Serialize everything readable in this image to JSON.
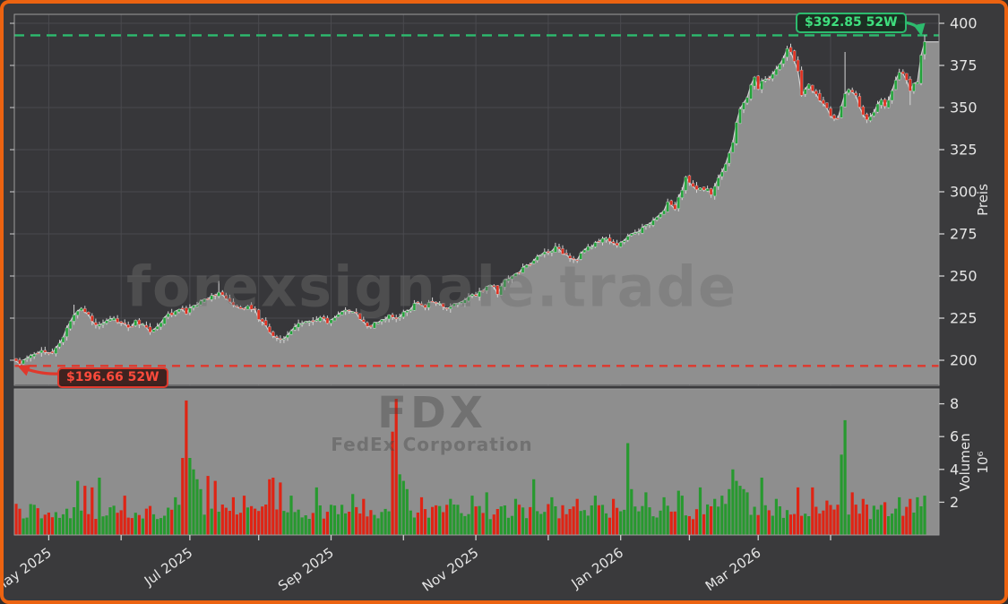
{
  "frame": {
    "border_color": "#ec6311",
    "background": "#3a3a3c"
  },
  "watermarks": {
    "site": "forexsignale.trade",
    "symbol": "FDX",
    "company": "FedEx Corporation"
  },
  "annotations": {
    "high": {
      "label": "$392.85 52W",
      "value": 392.85
    },
    "low": {
      "label": "$196.66 52W",
      "value": 196.66
    }
  },
  "price_axis": {
    "title": "Preis",
    "ticks": [
      200,
      225,
      250,
      275,
      300,
      325,
      350,
      375,
      400
    ]
  },
  "volume_axis": {
    "title": "Volumen",
    "scale": "10⁶",
    "ticks": [
      2,
      4,
      6,
      8
    ]
  },
  "x_axis": {
    "labels": [
      "May 2025",
      "Jul 2025",
      "Sep 2025",
      "Nov 2025",
      "Jan 2026",
      "Mar 2026"
    ],
    "month_tick_days": [
      9,
      29,
      48,
      67,
      87,
      107,
      127,
      147,
      167,
      186,
      205,
      225
    ]
  },
  "colors": {
    "panel_bg": "#37373a",
    "volume_bg": "#8e8e8e",
    "grid": "#4a4a4e",
    "area_fill": "#8f8f8f",
    "close_line": "#d2d2d2",
    "wick": "#d6d6d6",
    "candle_edge": "#e8e8e8",
    "up": "#23a33b",
    "down": "#e02f1f",
    "vol_up": "#27992f",
    "vol_down": "#df2414",
    "up_accent": "#2dbb6e",
    "down_accent": "#e0382c",
    "spine": "#9c9c9c",
    "tick": "#cfcfcf",
    "label": "#e5e5e5"
  },
  "chart_data": {
    "type": "candlestick+volume",
    "symbol": "FDX",
    "company": "FedEx Corporation",
    "days": 252,
    "high_52w": 392.85,
    "low_52w": 196.66,
    "price_ylim": [
      185,
      405
    ],
    "volume_ylim_millions": [
      0,
      8.9
    ],
    "first_open": 201,
    "pinned_closes": [
      [
        0,
        199.5
      ],
      [
        1,
        197.8
      ],
      [
        250,
        381
      ],
      [
        251,
        389
      ]
    ],
    "last_candle": {
      "open": 381.5,
      "close": 389,
      "high": 392.85,
      "low": 378.5
    },
    "wick_highs": [
      [
        16,
        233
      ],
      [
        56,
        247
      ],
      [
        229,
        383
      ]
    ],
    "wick_lows": [
      [
        1,
        196.66
      ],
      [
        247,
        351.5
      ]
    ],
    "close_anchors": [
      [
        0,
        199.5
      ],
      [
        1,
        197.8
      ],
      [
        3,
        202
      ],
      [
        5,
        204
      ],
      [
        7,
        206
      ],
      [
        10,
        205
      ],
      [
        12,
        210
      ],
      [
        14,
        218
      ],
      [
        16,
        228
      ],
      [
        18,
        231
      ],
      [
        20,
        226
      ],
      [
        22,
        221
      ],
      [
        24,
        223
      ],
      [
        26,
        225
      ],
      [
        29,
        222
      ],
      [
        31,
        219
      ],
      [
        33,
        223
      ],
      [
        35,
        221
      ],
      [
        37,
        217
      ],
      [
        40,
        222
      ],
      [
        42,
        227
      ],
      [
        45,
        230
      ],
      [
        47,
        228
      ],
      [
        49,
        232
      ],
      [
        52,
        236
      ],
      [
        54,
        238
      ],
      [
        56,
        241
      ],
      [
        58,
        236
      ],
      [
        60,
        232
      ],
      [
        62,
        230
      ],
      [
        64,
        233
      ],
      [
        66,
        229
      ],
      [
        68,
        222
      ],
      [
        70,
        217
      ],
      [
        73,
        212
      ],
      [
        75,
        216
      ],
      [
        78,
        221
      ],
      [
        80,
        224
      ],
      [
        82,
        222
      ],
      [
        84,
        225
      ],
      [
        86,
        222
      ],
      [
        88,
        226
      ],
      [
        90,
        228
      ],
      [
        92,
        230
      ],
      [
        94,
        227
      ],
      [
        96,
        222
      ],
      [
        98,
        220
      ],
      [
        101,
        224
      ],
      [
        103,
        226
      ],
      [
        105,
        224
      ],
      [
        107,
        228
      ],
      [
        109,
        231
      ],
      [
        111,
        234
      ],
      [
        113,
        232
      ],
      [
        115,
        235
      ],
      [
        117,
        233
      ],
      [
        119,
        230
      ],
      [
        121,
        233
      ],
      [
        123,
        235
      ],
      [
        125,
        237
      ],
      [
        127,
        239
      ],
      [
        129,
        242
      ],
      [
        131,
        245
      ],
      [
        133,
        240
      ],
      [
        135,
        247
      ],
      [
        137,
        250
      ],
      [
        139,
        253
      ],
      [
        141,
        256
      ],
      [
        143,
        259
      ],
      [
        145,
        263
      ],
      [
        147,
        265
      ],
      [
        149,
        267
      ],
      [
        151,
        264
      ],
      [
        153,
        261
      ],
      [
        155,
        260
      ],
      [
        157,
        265
      ],
      [
        159,
        268
      ],
      [
        161,
        270
      ],
      [
        163,
        272
      ],
      [
        165,
        270
      ],
      [
        166,
        267
      ],
      [
        168,
        272
      ],
      [
        170,
        274
      ],
      [
        172,
        277
      ],
      [
        174,
        280
      ],
      [
        176,
        283
      ],
      [
        178,
        287
      ],
      [
        180,
        293
      ],
      [
        182,
        290
      ],
      [
        184,
        302
      ],
      [
        185,
        308
      ],
      [
        186,
        306
      ],
      [
        188,
        300
      ],
      [
        190,
        302
      ],
      [
        192,
        299
      ],
      [
        194,
        308
      ],
      [
        196,
        316
      ],
      [
        197,
        322
      ],
      [
        198,
        330
      ],
      [
        199,
        340
      ],
      [
        200,
        350
      ],
      [
        201,
        354
      ],
      [
        202,
        357
      ],
      [
        203,
        363
      ],
      [
        204,
        367
      ],
      [
        205,
        361
      ],
      [
        206,
        365
      ],
      [
        208,
        368
      ],
      [
        210,
        372
      ],
      [
        212,
        380
      ],
      [
        213,
        386
      ],
      [
        214,
        383
      ],
      [
        215,
        378
      ],
      [
        216,
        371
      ],
      [
        217,
        357
      ],
      [
        219,
        365
      ],
      [
        220,
        360
      ],
      [
        222,
        355
      ],
      [
        224,
        349
      ],
      [
        226,
        343
      ],
      [
        227,
        342
      ],
      [
        228,
        352
      ],
      [
        230,
        362
      ],
      [
        232,
        356
      ],
      [
        234,
        346
      ],
      [
        235,
        343
      ],
      [
        237,
        348
      ],
      [
        239,
        355
      ],
      [
        240,
        351
      ],
      [
        242,
        360
      ],
      [
        244,
        371
      ],
      [
        245,
        369
      ],
      [
        247,
        361
      ],
      [
        249,
        366
      ],
      [
        250,
        381
      ],
      [
        251,
        389
      ]
    ],
    "volume_spikes": [
      [
        17,
        3.3
      ],
      [
        19,
        3.0
      ],
      [
        21,
        2.9
      ],
      [
        23,
        3.5
      ],
      [
        30,
        2.4
      ],
      [
        44,
        2.3
      ],
      [
        46,
        4.7
      ],
      [
        47,
        8.2
      ],
      [
        48,
        4.7
      ],
      [
        49,
        4.0
      ],
      [
        50,
        3.4
      ],
      [
        51,
        2.8
      ],
      [
        53,
        3.6
      ],
      [
        55,
        3.3
      ],
      [
        60,
        2.3
      ],
      [
        63,
        2.4
      ],
      [
        70,
        3.4
      ],
      [
        71,
        3.5
      ],
      [
        73,
        3.2
      ],
      [
        76,
        2.4
      ],
      [
        83,
        2.9
      ],
      [
        93,
        2.5
      ],
      [
        96,
        2.2
      ],
      [
        104,
        6.3
      ],
      [
        105,
        8.3
      ],
      [
        106,
        3.7
      ],
      [
        107,
        3.3
      ],
      [
        108,
        2.8
      ],
      [
        112,
        2.3
      ],
      [
        120,
        2.2
      ],
      [
        126,
        2.4
      ],
      [
        130,
        2.6
      ],
      [
        138,
        2.2
      ],
      [
        143,
        3.4
      ],
      [
        148,
        2.3
      ],
      [
        155,
        2.2
      ],
      [
        160,
        2.4
      ],
      [
        165,
        2.2
      ],
      [
        169,
        5.6
      ],
      [
        170,
        2.8
      ],
      [
        174,
        2.6
      ],
      [
        179,
        2.3
      ],
      [
        183,
        2.7
      ],
      [
        184,
        2.4
      ],
      [
        189,
        2.9
      ],
      [
        193,
        2.2
      ],
      [
        195,
        2.4
      ],
      [
        197,
        2.8
      ],
      [
        198,
        4.0
      ],
      [
        199,
        3.3
      ],
      [
        200,
        3.0
      ],
      [
        201,
        2.8
      ],
      [
        202,
        2.6
      ],
      [
        206,
        3.5
      ],
      [
        210,
        2.2
      ],
      [
        216,
        2.9
      ],
      [
        220,
        2.9
      ],
      [
        224,
        2.1
      ],
      [
        228,
        4.9
      ],
      [
        229,
        7.0
      ],
      [
        231,
        2.6
      ],
      [
        234,
        2.2
      ],
      [
        240,
        2.0
      ],
      [
        244,
        2.3
      ],
      [
        247,
        2.2
      ],
      [
        249,
        2.3
      ],
      [
        251,
        2.4
      ]
    ]
  }
}
